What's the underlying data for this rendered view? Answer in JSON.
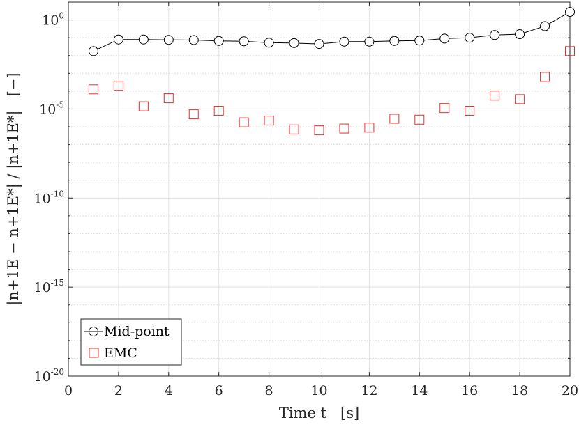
{
  "chart_data": {
    "type": "scatter",
    "xlabel": "Time t   [s]",
    "ylabel": "|n+1E − n+1E*| / |n+1E*|   [−]",
    "xlim": [
      0,
      20
    ],
    "ylim_exponent": [
      -20,
      1
    ],
    "yscale": "log",
    "xticks": [
      "0",
      "2",
      "4",
      "6",
      "8",
      "10",
      "12",
      "14",
      "16",
      "18",
      "20"
    ],
    "yticks": [
      {
        "base": "10",
        "exp": "0",
        "value_exp": 0
      },
      {
        "base": "10",
        "exp": "-5",
        "value_exp": -5
      },
      {
        "base": "10",
        "exp": "-10",
        "value_exp": -10
      },
      {
        "base": "10",
        "exp": "-15",
        "value_exp": -15
      },
      {
        "base": "10",
        "exp": "-20",
        "value_exp": -20
      }
    ],
    "grid": true,
    "legend": "bottom-left",
    "series": [
      {
        "name": "Mid-point",
        "marker": "circle",
        "line": true,
        "color": "#000000",
        "x": [
          1,
          2,
          3,
          4,
          5,
          6,
          7,
          8,
          9,
          10,
          11,
          12,
          13,
          14,
          15,
          16,
          17,
          18,
          19,
          20
        ],
        "y_exp": [
          -1.75,
          -1.1,
          -1.1,
          -1.12,
          -1.13,
          -1.18,
          -1.2,
          -1.28,
          -1.3,
          -1.35,
          -1.22,
          -1.22,
          -1.18,
          -1.16,
          -1.05,
          -1.0,
          -0.85,
          -0.8,
          -0.35,
          0.45
        ]
      },
      {
        "name": "EMC",
        "marker": "square",
        "line": false,
        "color": "#e8302a",
        "x": [
          1,
          2,
          3,
          4,
          5,
          6,
          7,
          8,
          9,
          10,
          11,
          12,
          13,
          14,
          15,
          16,
          17,
          18,
          19,
          20
        ],
        "y_exp": [
          -3.9,
          -3.7,
          -4.85,
          -4.4,
          -5.3,
          -5.1,
          -5.75,
          -5.65,
          -6.15,
          -6.2,
          -6.1,
          -6.05,
          -5.55,
          -5.6,
          -4.95,
          -5.1,
          -4.25,
          -4.45,
          -3.2,
          -1.75
        ]
      }
    ]
  }
}
